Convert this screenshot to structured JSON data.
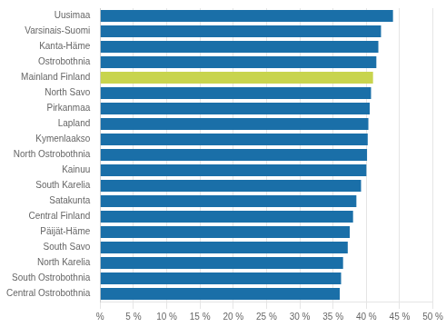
{
  "chart_data": {
    "type": "bar",
    "orientation": "horizontal",
    "categories": [
      "Central Ostrobothnia",
      "South Ostrobothnia",
      "North Karelia",
      "South Savo",
      "Päijät-Häme",
      "Central Finland",
      "Satakunta",
      "South Karelia",
      "Kainuu",
      "North Ostrobothnia",
      "Kymenlaakso",
      "Lapland",
      "Pirkanmaa",
      "North Savo",
      "Mainland Finland",
      "Ostrobothnia",
      "Kanta-Häme",
      "Varsinais-Suomi",
      "Uusimaa"
    ],
    "values": [
      36.0,
      36.2,
      36.5,
      37.2,
      37.5,
      38.0,
      38.5,
      39.2,
      40.0,
      40.1,
      40.2,
      40.3,
      40.5,
      40.7,
      41.0,
      41.5,
      41.8,
      42.2,
      44.0
    ],
    "colors": [
      "#1a6fa8",
      "#1a6fa8",
      "#1a6fa8",
      "#1a6fa8",
      "#1a6fa8",
      "#1a6fa8",
      "#1a6fa8",
      "#1a6fa8",
      "#1a6fa8",
      "#1a6fa8",
      "#1a6fa8",
      "#1a6fa8",
      "#1a6fa8",
      "#1a6fa8",
      "#c8d44e",
      "#1a6fa8",
      "#1a6fa8",
      "#1a6fa8",
      "#1a6fa8"
    ],
    "xlim": [
      0,
      50
    ],
    "xticks": [
      {
        "value": 0,
        "label": "%"
      },
      {
        "value": 5,
        "label": "5 %"
      },
      {
        "value": 10,
        "label": "10 %"
      },
      {
        "value": 15,
        "label": "15 %"
      },
      {
        "value": 20,
        "label": "20 %"
      },
      {
        "value": 25,
        "label": "25 %"
      },
      {
        "value": 30,
        "label": "30 %"
      },
      {
        "value": 35,
        "label": "35 %"
      },
      {
        "value": 40,
        "label": "40 %"
      },
      {
        "value": 45,
        "label": "45 %"
      },
      {
        "value": 50,
        "label": "50 %"
      }
    ],
    "grid": true
  }
}
